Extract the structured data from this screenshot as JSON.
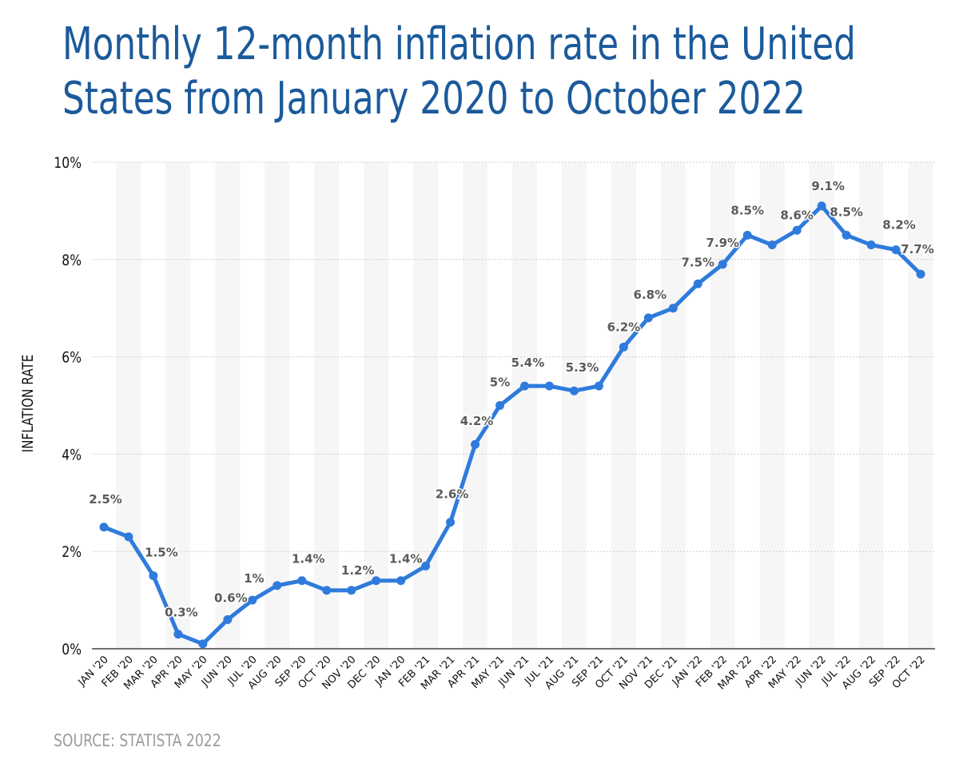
{
  "title": "Monthly 12-month inflation rate in the United States from January 2020 to October 2022",
  "source": "SOURCE: STATISTA 2022",
  "colors": {
    "title": "#1b5a9b",
    "line": "#2f7bdc",
    "stripe": "#f6f6f6",
    "grid": "#cfcfcf",
    "axis": "#444444",
    "data_label": "#5a5a5a",
    "source": "#9b9b9b"
  },
  "chart_data": {
    "type": "line",
    "title": "Monthly 12-month inflation rate in the United States from January 2020 to October 2022",
    "xlabel": "",
    "ylabel": "INFLATION RATE",
    "ylim": [
      0,
      10
    ],
    "yticks": [
      0,
      2,
      4,
      6,
      8,
      10
    ],
    "ytick_labels": [
      "0%",
      "2%",
      "4%",
      "6%",
      "8%",
      "10%"
    ],
    "grid": true,
    "legend": "none",
    "categories": [
      "JAN '20",
      "FEB '20",
      "MAR '20",
      "APR '20",
      "MAY '20",
      "JUN '20",
      "JUL '20",
      "AUG '20",
      "SEP '20",
      "OCT '20",
      "NOV '20",
      "DEC '20",
      "JAN '20",
      "FEB '21",
      "MAR '21",
      "APR '21",
      "MAY '21",
      "JUN '21",
      "JUL '21",
      "AUG '21",
      "SEP '21",
      "OCT '21",
      "NOV '21",
      "DEC '21",
      "JAN '22",
      "FEB '22",
      "MAR '22",
      "APR '22",
      "MAY '22",
      "JUN '22",
      "JUL '22",
      "AUG '22",
      "SEP '22",
      "OCT '22"
    ],
    "series": [
      {
        "name": "Inflation rate",
        "values": [
          2.5,
          2.3,
          1.5,
          0.3,
          0.1,
          0.6,
          1.0,
          1.3,
          1.4,
          1.2,
          1.2,
          1.4,
          1.4,
          1.7,
          2.6,
          4.2,
          5.0,
          5.4,
          5.4,
          5.3,
          5.4,
          6.2,
          6.8,
          7.0,
          7.5,
          7.9,
          8.5,
          8.3,
          8.6,
          9.1,
          8.5,
          8.3,
          8.2,
          7.7
        ]
      }
    ],
    "data_labels": [
      {
        "index": 0,
        "text": "2.5%"
      },
      {
        "index": 2,
        "text": "1.5%"
      },
      {
        "index": 3,
        "text": "0.3%"
      },
      {
        "index": 5,
        "text": "0.6%"
      },
      {
        "index": 6,
        "text": "1%"
      },
      {
        "index": 8,
        "text": "1.4%"
      },
      {
        "index": 10,
        "text": "1.2%"
      },
      {
        "index": 12,
        "text": "1.4%"
      },
      {
        "index": 14,
        "text": "2.6%"
      },
      {
        "index": 15,
        "text": "4.2%"
      },
      {
        "index": 16,
        "text": "5%"
      },
      {
        "index": 17,
        "text": "5.4%"
      },
      {
        "index": 19,
        "text": "5.3%"
      },
      {
        "index": 21,
        "text": "6.2%"
      },
      {
        "index": 22,
        "text": "6.8%"
      },
      {
        "index": 24,
        "text": "7.5%"
      },
      {
        "index": 25,
        "text": "7.9%"
      },
      {
        "index": 26,
        "text": "8.5%"
      },
      {
        "index": 28,
        "text": "8.6%"
      },
      {
        "index": 29,
        "text": "9.1%"
      },
      {
        "index": 30,
        "text": "8.5%"
      },
      {
        "index": 32,
        "text": "8.2%"
      },
      {
        "index": 33,
        "text": "7.7%"
      }
    ]
  }
}
